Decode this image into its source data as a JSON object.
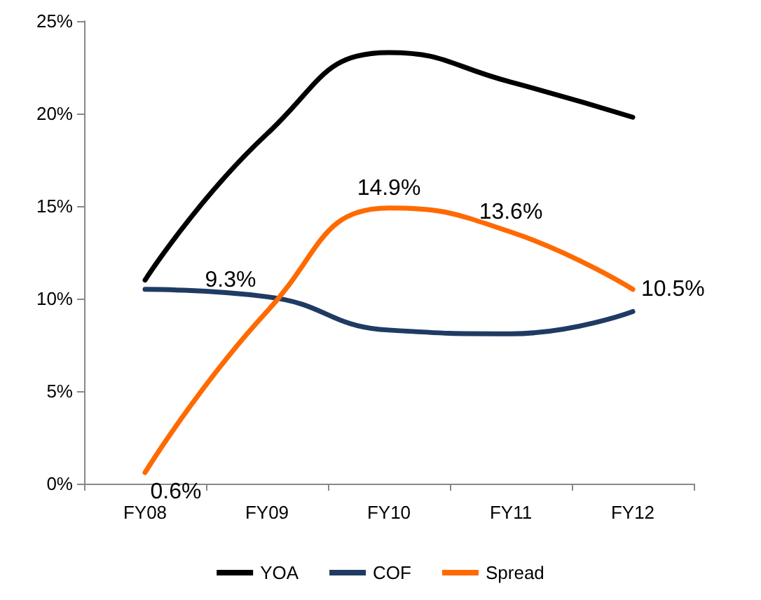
{
  "chart_data": {
    "type": "line",
    "categories": [
      "FY08",
      "FY09",
      "FY10",
      "FY11",
      "FY12"
    ],
    "series": [
      {
        "name": "YOA",
        "color": "#000000",
        "values": [
          11.0,
          18.9,
          23.3,
          21.7,
          19.8
        ]
      },
      {
        "name": "COF",
        "color": "#1f3b63",
        "values": [
          10.5,
          10.1,
          8.3,
          8.1,
          9.3
        ]
      },
      {
        "name": "Spread",
        "color": "#ff6a00",
        "values": [
          0.6,
          9.3,
          14.9,
          13.6,
          10.5
        ],
        "value_labels": [
          "0.6%",
          "9.3%",
          "14.9%",
          "13.6%",
          "10.5%"
        ]
      }
    ],
    "ylim": [
      0,
      25
    ],
    "yticks": [
      {
        "value": 0,
        "label": "0%"
      },
      {
        "value": 5,
        "label": "5%"
      },
      {
        "value": 10,
        "label": "10%"
      },
      {
        "value": 15,
        "label": "15%"
      },
      {
        "value": 20,
        "label": "20%"
      },
      {
        "value": 25,
        "label": "25%"
      }
    ],
    "grid": false,
    "legend": "bottom",
    "marker": "none",
    "line_style": "solid"
  }
}
